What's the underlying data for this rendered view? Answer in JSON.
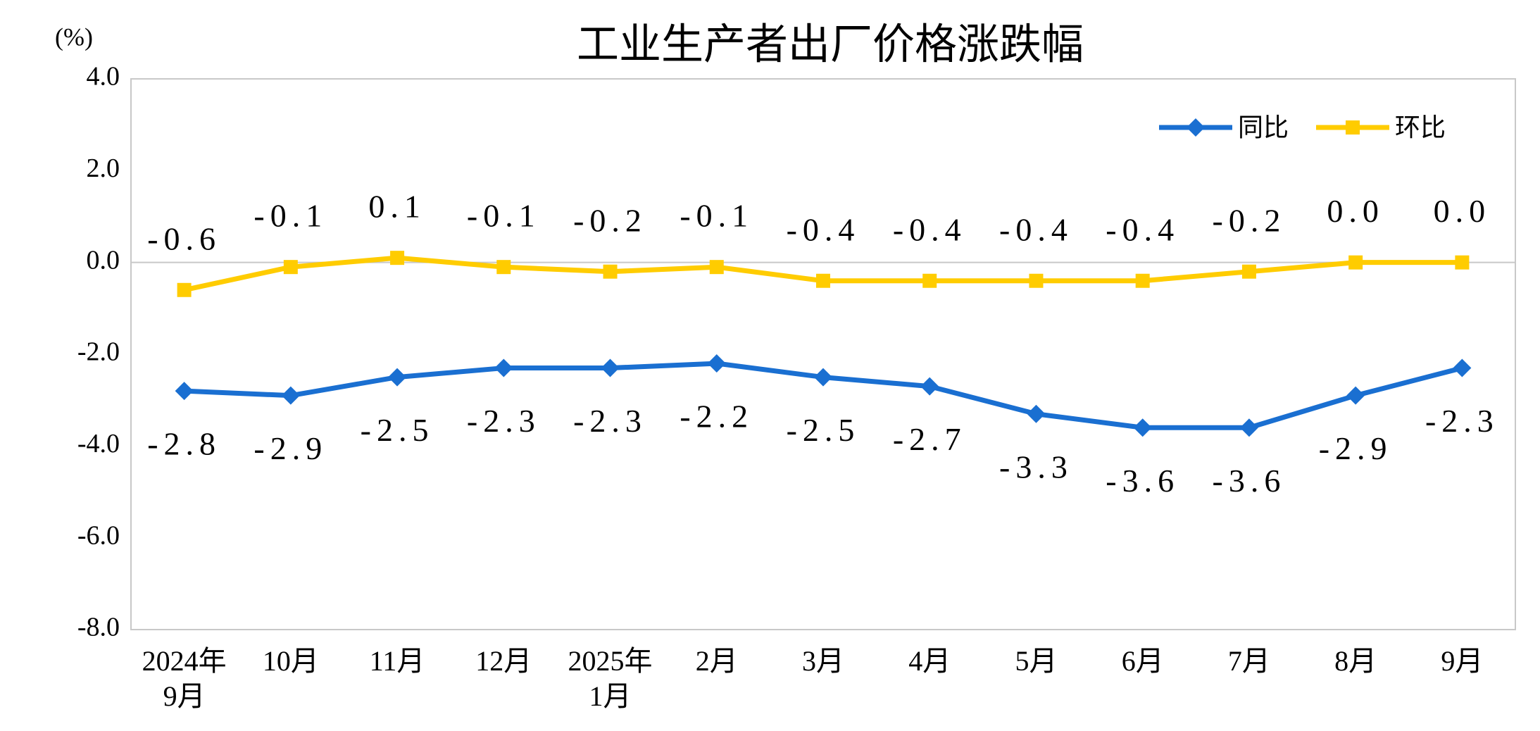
{
  "chart_data": {
    "type": "line",
    "title": "工业生产者出厂价格涨跌幅",
    "y_unit": "(%)",
    "categories": [
      "2024年\n9月",
      "10月",
      "11月",
      "12月",
      "2025年\n1月",
      "2月",
      "3月",
      "4月",
      "5月",
      "6月",
      "7月",
      "8月",
      "9月"
    ],
    "series": [
      {
        "name": "同比",
        "color": "#1a6fd1",
        "marker": "diamond",
        "values": [
          -2.8,
          -2.9,
          -2.5,
          -2.3,
          -2.3,
          -2.2,
          -2.5,
          -2.7,
          -3.3,
          -3.6,
          -3.6,
          -2.9,
          -2.3
        ],
        "value_labels": [
          "-2.8",
          "-2.9",
          "-2.5",
          "-2.3",
          "-2.3",
          "-2.2",
          "-2.5",
          "-2.7",
          "-3.3",
          "-3.6",
          "-3.6",
          "-2.9",
          "-2.3"
        ]
      },
      {
        "name": "环比",
        "color": "#ffcc00",
        "marker": "square",
        "values": [
          -0.6,
          -0.1,
          0.1,
          -0.1,
          -0.2,
          -0.1,
          -0.4,
          -0.4,
          -0.4,
          -0.4,
          -0.2,
          0.0,
          0.0
        ],
        "value_labels": [
          "-0.6",
          "-0.1",
          "0.1",
          "-0.1",
          "-0.2",
          "-0.1",
          "-0.4",
          "-0.4",
          "-0.4",
          "-0.4",
          "-0.2",
          "0.0",
          "0.0"
        ]
      }
    ],
    "ylim": [
      -8,
      4
    ],
    "yticks": [
      {
        "value": 4,
        "label": "4.0"
      },
      {
        "value": 2,
        "label": "2.0"
      },
      {
        "value": 0,
        "label": "0.0"
      },
      {
        "value": -2,
        "label": "-2.0"
      },
      {
        "value": -4,
        "label": "-4.0"
      },
      {
        "value": -6,
        "label": "-6.0"
      },
      {
        "value": -8,
        "label": "-8.0"
      }
    ],
    "legend": "top-right"
  }
}
